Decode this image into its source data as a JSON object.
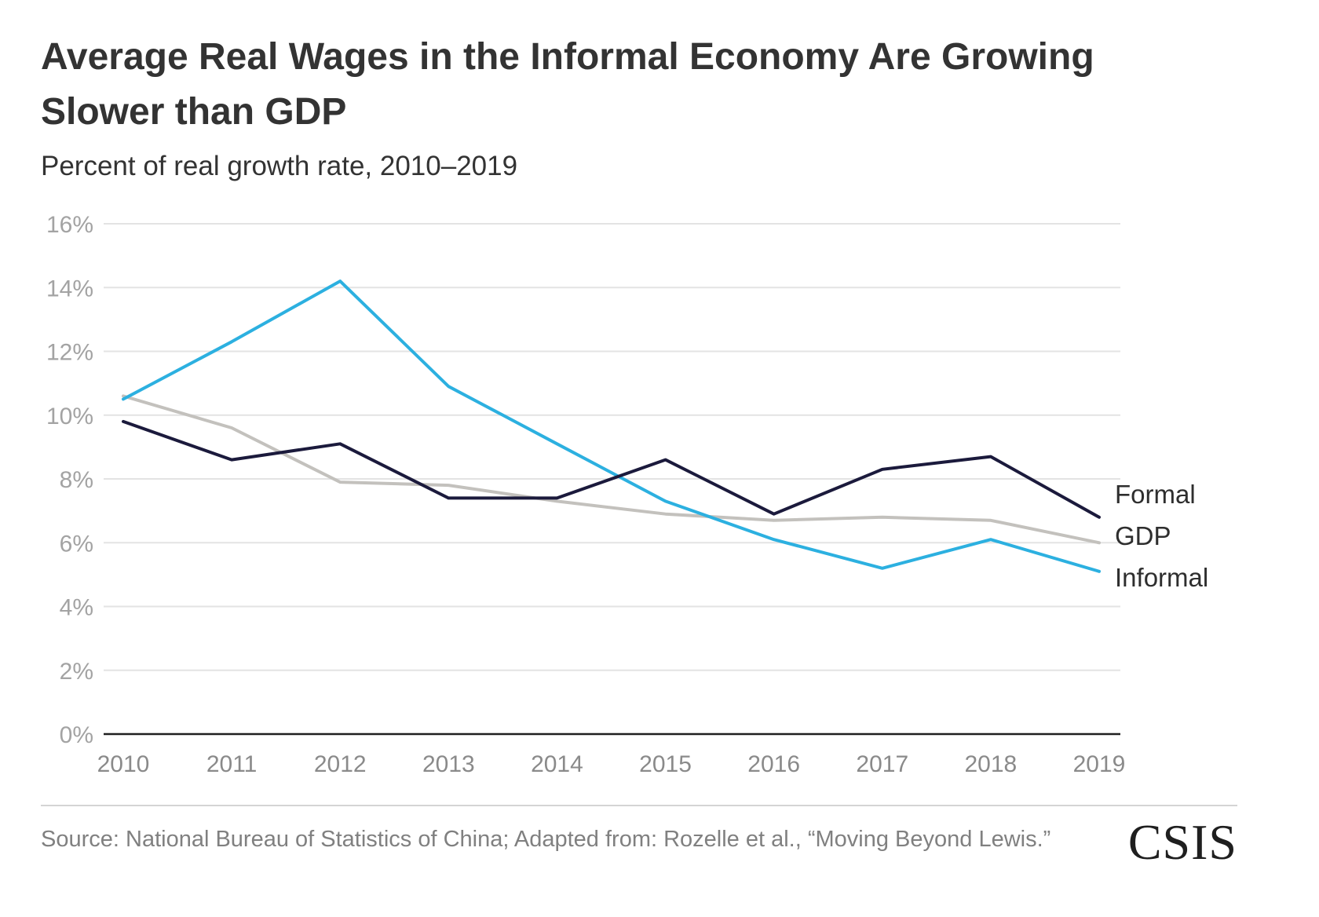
{
  "header": {
    "title": "Average Real Wages in the Informal Economy Are Growing Slower than GDP",
    "subtitle": "Percent of real growth rate, 2010–2019"
  },
  "footer": {
    "source": "Source: National Bureau of Statistics of China; Adapted from: Rozelle et al., “Moving Beyond Lewis.”",
    "logo": "CSIS"
  },
  "chart_data": {
    "type": "line",
    "title": "Average Real Wages in the Informal Economy Are Growing Slower than GDP",
    "subtitle": "Percent of real growth rate, 2010–2019",
    "xlabel": "",
    "ylabel": "",
    "x": [
      2010,
      2011,
      2012,
      2013,
      2014,
      2015,
      2016,
      2017,
      2018,
      2019
    ],
    "ylim": [
      0,
      16
    ],
    "yticks": [
      0,
      2,
      4,
      6,
      8,
      10,
      12,
      14,
      16
    ],
    "ytick_labels": [
      "0%",
      "2%",
      "4%",
      "6%",
      "8%",
      "10%",
      "12%",
      "14%",
      "16%"
    ],
    "grid": true,
    "legend": "direct labels at right end of lines",
    "series": [
      {
        "name": "Formal",
        "color": "#1b1a3c",
        "values": [
          9.8,
          8.6,
          9.1,
          7.4,
          7.4,
          8.6,
          6.9,
          8.3,
          8.7,
          6.8
        ]
      },
      {
        "name": "GDP",
        "color": "#c3c1bd",
        "values": [
          10.6,
          9.6,
          7.9,
          7.8,
          7.3,
          6.9,
          6.7,
          6.8,
          6.7,
          6.0
        ]
      },
      {
        "name": "Informal",
        "color": "#2cb0e0",
        "values": [
          10.5,
          12.3,
          14.2,
          10.9,
          9.1,
          7.3,
          6.1,
          5.2,
          6.1,
          5.1
        ]
      }
    ]
  }
}
